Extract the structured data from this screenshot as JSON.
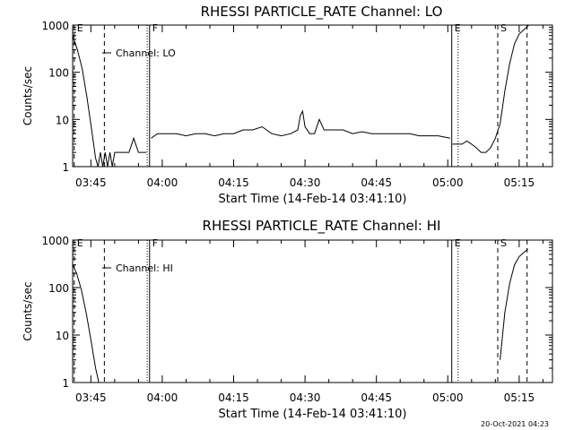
{
  "timestamp": "20-Oct-2021 04:23",
  "chart_data": [
    {
      "type": "line",
      "title": "RHESSI PARTICLE_RATE Channel: LO",
      "xlabel": "Start Time (14-Feb-14 03:41:10)",
      "ylabel": "Counts/sec",
      "y_scale": "log",
      "ylim": [
        1,
        1000
      ],
      "y_ticks": [
        "1",
        "10",
        "100",
        "1000"
      ],
      "xlim": [
        "03:41:10",
        "05:22:00"
      ],
      "x_ticks": [
        "03:45",
        "04:00",
        "04:15",
        "04:30",
        "04:45",
        "05:00",
        "05:15"
      ],
      "legend": {
        "position": "top-left",
        "entries": [
          "Channel: LO"
        ]
      },
      "markers": [
        {
          "label": "E",
          "time": "03:41:30",
          "style": "dashed"
        },
        {
          "label": "",
          "time": "03:47:50",
          "style": "dashed"
        },
        {
          "label": "",
          "time": "03:56:50",
          "style": "dotted"
        },
        {
          "label": "F",
          "time": "03:57:20",
          "style": "solid"
        },
        {
          "label": "E",
          "time": "05:00:50",
          "style": "solid"
        },
        {
          "label": "",
          "time": "05:02:10",
          "style": "dotted"
        },
        {
          "label": "S",
          "time": "05:10:30",
          "style": "dashed"
        },
        {
          "label": "",
          "time": "05:16:40",
          "style": "dashed"
        }
      ],
      "series": [
        {
          "segments": [
            [
              [
                "03:41:10",
                600
              ],
              [
                "03:42:10",
                300
              ],
              [
                "03:43:10",
                120
              ],
              [
                "03:44:10",
                30
              ],
              [
                "03:45:10",
                6
              ],
              [
                "03:46:00",
                1.5
              ],
              [
                "03:46:30",
                1
              ],
              [
                "03:47:00",
                2
              ],
              [
                "03:47:30",
                1
              ],
              [
                "03:48:00",
                2
              ],
              [
                "03:48:30",
                1
              ],
              [
                "03:49:00",
                2
              ],
              [
                "03:49:30",
                1
              ],
              [
                "03:50:00",
                2
              ],
              [
                "03:51:00",
                2
              ],
              [
                "03:52:00",
                2
              ],
              [
                "03:53:00",
                2
              ],
              [
                "03:54:00",
                4
              ],
              [
                "03:55:00",
                2
              ],
              [
                "03:56:00",
                2
              ],
              [
                "03:56:40",
                2
              ]
            ],
            [
              [
                "03:57:40",
                4
              ],
              [
                "03:59:00",
                5
              ],
              [
                "04:01:00",
                5
              ],
              [
                "04:03:00",
                5
              ],
              [
                "04:05:00",
                4.5
              ],
              [
                "04:07:00",
                5
              ],
              [
                "04:09:00",
                5
              ],
              [
                "04:11:00",
                4.5
              ],
              [
                "04:13:00",
                5
              ],
              [
                "04:15:00",
                5
              ],
              [
                "04:17:00",
                6
              ],
              [
                "04:19:00",
                6
              ],
              [
                "04:21:00",
                7
              ],
              [
                "04:23:00",
                5
              ],
              [
                "04:25:00",
                4.5
              ],
              [
                "04:27:00",
                5
              ],
              [
                "04:28:30",
                6
              ],
              [
                "04:29:00",
                12
              ],
              [
                "04:29:30",
                15
              ],
              [
                "04:30:00",
                7
              ],
              [
                "04:31:00",
                5
              ],
              [
                "04:32:00",
                5
              ],
              [
                "04:33:00",
                10
              ],
              [
                "04:34:00",
                6
              ],
              [
                "04:36:00",
                6
              ],
              [
                "04:38:00",
                6
              ],
              [
                "04:40:00",
                5
              ],
              [
                "04:42:00",
                5.5
              ],
              [
                "04:44:00",
                5
              ],
              [
                "04:46:00",
                5
              ],
              [
                "04:48:00",
                5
              ],
              [
                "04:50:00",
                5
              ],
              [
                "04:52:00",
                5
              ],
              [
                "04:54:00",
                4.5
              ],
              [
                "04:56:00",
                4.5
              ],
              [
                "04:58:00",
                4.5
              ],
              [
                "05:00:30",
                4
              ]
            ],
            [
              [
                "05:01:00",
                3
              ],
              [
                "05:02:00",
                3
              ],
              [
                "05:03:00",
                3
              ],
              [
                "05:04:00",
                3.5
              ],
              [
                "05:05:00",
                3
              ],
              [
                "05:06:00",
                2.5
              ],
              [
                "05:07:00",
                2
              ],
              [
                "05:08:00",
                2
              ],
              [
                "05:09:00",
                2.5
              ],
              [
                "05:10:00",
                4
              ],
              [
                "05:11:00",
                8
              ],
              [
                "05:12:00",
                40
              ],
              [
                "05:13:00",
                150
              ],
              [
                "05:14:00",
                400
              ],
              [
                "05:15:00",
                650
              ],
              [
                "05:16:00",
                800
              ],
              [
                "05:17:00",
                1000
              ]
            ]
          ]
        }
      ]
    },
    {
      "type": "line",
      "title": "RHESSI PARTICLE_RATE Channel: HI",
      "xlabel": "Start Time (14-Feb-14 03:41:10)",
      "ylabel": "Counts/sec",
      "y_scale": "log",
      "ylim": [
        1,
        1000
      ],
      "y_ticks": [
        "1",
        "10",
        "100",
        "1000"
      ],
      "xlim": [
        "03:41:10",
        "05:22:00"
      ],
      "x_ticks": [
        "03:45",
        "04:00",
        "04:15",
        "04:30",
        "04:45",
        "05:00",
        "05:15"
      ],
      "legend": {
        "position": "top-left",
        "entries": [
          "Channel: HI"
        ]
      },
      "markers": [
        {
          "label": "E",
          "time": "03:41:30",
          "style": "dashed"
        },
        {
          "label": "",
          "time": "03:47:50",
          "style": "dashed"
        },
        {
          "label": "",
          "time": "03:56:50",
          "style": "dotted"
        },
        {
          "label": "F",
          "time": "03:57:20",
          "style": "solid"
        },
        {
          "label": "E",
          "time": "05:00:50",
          "style": "solid"
        },
        {
          "label": "",
          "time": "05:02:10",
          "style": "dotted"
        },
        {
          "label": "S",
          "time": "05:10:30",
          "style": "dashed"
        },
        {
          "label": "",
          "time": "05:16:40",
          "style": "dashed"
        }
      ],
      "series": [
        {
          "segments": [
            [
              [
                "03:41:10",
                300
              ],
              [
                "03:42:00",
                200
              ],
              [
                "03:43:00",
                90
              ],
              [
                "03:44:00",
                30
              ],
              [
                "03:45:00",
                8
              ],
              [
                "03:46:00",
                2
              ],
              [
                "03:46:40",
                1
              ]
            ],
            [
              [
                "05:11:00",
                3
              ],
              [
                "05:12:00",
                30
              ],
              [
                "05:13:00",
                120
              ],
              [
                "05:14:00",
                300
              ],
              [
                "05:15:00",
                450
              ],
              [
                "05:16:00",
                550
              ],
              [
                "05:16:50",
                650
              ]
            ]
          ]
        }
      ]
    }
  ]
}
